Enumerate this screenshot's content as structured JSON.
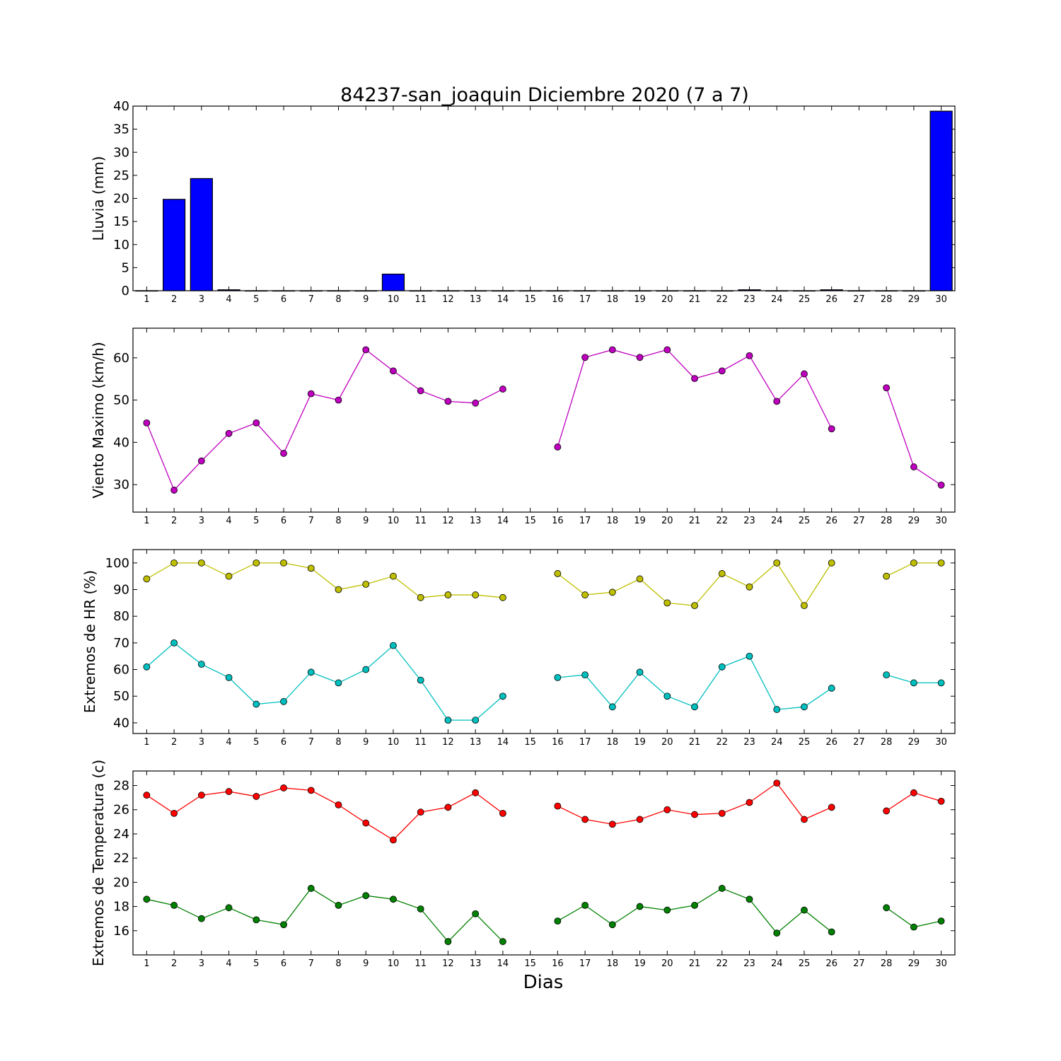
{
  "title": "84237-san_joaquin Diciembre 2020  (7 a 7)",
  "xlabel": "Dias",
  "x_ticks": [
    "1",
    "2",
    "3",
    "4",
    "5",
    "6",
    "7",
    "8",
    "9",
    "10",
    "11",
    "12",
    "13",
    "14",
    "15",
    "16",
    "17",
    "18",
    "19",
    "20",
    "21",
    "22",
    "23",
    "24",
    "25",
    "26",
    "27",
    "28",
    "29",
    "30"
  ],
  "colors": {
    "rain": "#0000ff",
    "wind": "#bf00bf",
    "hr_max": "#bfbf00",
    "hr_min": "#00bfbf",
    "temp_max": "#ff0000",
    "temp_min": "#008000"
  },
  "chart_data": [
    {
      "type": "bar",
      "ylabel": "Lluvia (mm)",
      "ylim": [
        0,
        40
      ],
      "yticks": [
        0,
        5,
        10,
        15,
        20,
        25,
        30,
        35,
        40
      ],
      "categories": [
        "1",
        "2",
        "3",
        "4",
        "5",
        "6",
        "7",
        "8",
        "9",
        "10",
        "11",
        "12",
        "13",
        "14",
        "15",
        "16",
        "17",
        "18",
        "19",
        "20",
        "21",
        "22",
        "23",
        "24",
        "25",
        "26",
        "27",
        "28",
        "29",
        "30"
      ],
      "series": [
        {
          "values": [
            0,
            19.8,
            24.3,
            0.2,
            0,
            0,
            0,
            0,
            0,
            3.6,
            0,
            0,
            0,
            0,
            0,
            0,
            0,
            0,
            0,
            0,
            0,
            0,
            0.2,
            0,
            0,
            0.2,
            0,
            0,
            0,
            38.9
          ]
        }
      ]
    },
    {
      "type": "line",
      "ylabel": "Viento Maximo (km/h)",
      "ylim": [
        23.5,
        67
      ],
      "yticks": [
        30,
        40,
        50,
        60
      ],
      "x": [
        1,
        2,
        3,
        4,
        5,
        6,
        7,
        8,
        9,
        10,
        11,
        12,
        13,
        14,
        15,
        16,
        17,
        18,
        19,
        20,
        21,
        22,
        23,
        24,
        25,
        26,
        27,
        28,
        29,
        30
      ],
      "series": [
        {
          "values": [
            44.6,
            28.7,
            35.6,
            42.1,
            44.6,
            37.4,
            51.5,
            50.0,
            61.9,
            56.9,
            52.2,
            49.7,
            49.3,
            52.6,
            null,
            38.9,
            60.1,
            61.9,
            60.1,
            61.9,
            55.1,
            56.9,
            60.5,
            49.7,
            56.2,
            43.2,
            null,
            52.9,
            34.2,
            29.9
          ]
        }
      ]
    },
    {
      "type": "line",
      "ylabel": "Extremos de HR (%)",
      "ylim": [
        36,
        105
      ],
      "yticks": [
        40,
        50,
        60,
        70,
        80,
        90,
        100
      ],
      "x": [
        1,
        2,
        3,
        4,
        5,
        6,
        7,
        8,
        9,
        10,
        11,
        12,
        13,
        14,
        15,
        16,
        17,
        18,
        19,
        20,
        21,
        22,
        23,
        24,
        25,
        26,
        27,
        28,
        29,
        30
      ],
      "series": [
        {
          "values": [
            94,
            100,
            100,
            95,
            100,
            100,
            98,
            90,
            92,
            95,
            87,
            88,
            88,
            87,
            null,
            96,
            88,
            89,
            94,
            85,
            84,
            96,
            91,
            100,
            84,
            100,
            null,
            95,
            100,
            100
          ]
        },
        {
          "values": [
            61,
            70,
            62,
            57,
            47,
            48,
            59,
            55,
            60,
            69,
            56,
            41,
            41,
            50,
            null,
            57,
            58,
            46,
            59,
            50,
            46,
            61,
            65,
            45,
            46,
            53,
            null,
            58,
            55,
            55
          ]
        }
      ]
    },
    {
      "type": "line",
      "ylabel": "Extremos de Temperatura (c)",
      "ylim": [
        14,
        29.2
      ],
      "yticks": [
        16,
        18,
        20,
        22,
        24,
        26,
        28
      ],
      "x": [
        1,
        2,
        3,
        4,
        5,
        6,
        7,
        8,
        9,
        10,
        11,
        12,
        13,
        14,
        15,
        16,
        17,
        18,
        19,
        20,
        21,
        22,
        23,
        24,
        25,
        26,
        27,
        28,
        29,
        30
      ],
      "series": [
        {
          "values": [
            27.2,
            25.7,
            27.2,
            27.5,
            27.1,
            27.8,
            27.6,
            26.4,
            24.9,
            23.5,
            25.8,
            26.2,
            27.4,
            25.7,
            null,
            26.3,
            25.2,
            24.8,
            25.2,
            26.0,
            25.6,
            25.7,
            26.6,
            28.2,
            25.2,
            26.2,
            null,
            25.9,
            27.4,
            26.7
          ]
        },
        {
          "values": [
            18.6,
            18.1,
            17.0,
            17.9,
            16.9,
            16.5,
            19.5,
            18.1,
            18.9,
            18.6,
            17.8,
            15.1,
            17.4,
            15.1,
            null,
            16.8,
            18.1,
            16.5,
            18.0,
            17.7,
            18.1,
            19.5,
            18.6,
            15.8,
            17.7,
            15.9,
            null,
            17.9,
            16.3,
            16.8
          ]
        }
      ]
    }
  ]
}
